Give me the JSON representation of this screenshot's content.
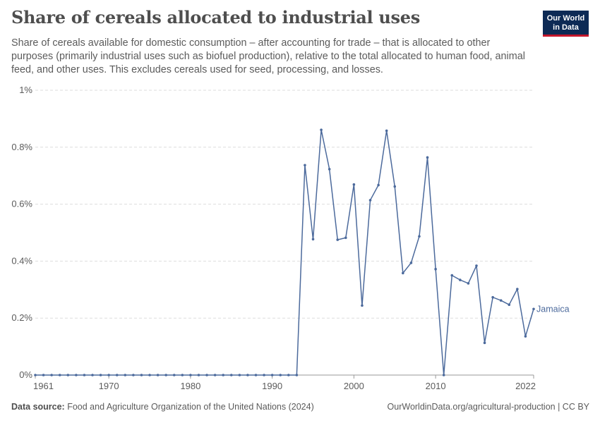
{
  "header": {
    "title": "Share of cereals allocated to industrial uses",
    "subtitle": "Share of cereals available for domestic consumption – after accounting for trade – that is allocated to other purposes (primarily industrial uses such as biofuel production), relative to the total allocated to human food, animal feed, and other uses. This excludes cereals used for seed, processing, and losses.",
    "logo_line1": "Our World",
    "logo_line2": "in Data"
  },
  "footer": {
    "source_label": "Data source:",
    "source_text": "Food and Agriculture Organization of the United Nations (2024)",
    "url": "OurWorldinData.org/agricultural-production | CC BY"
  },
  "colors": {
    "series": "#4c6a9c",
    "grid": "#dddddd",
    "axis": "#999999"
  },
  "chart_data": {
    "type": "line",
    "xlim": [
      1961,
      2022
    ],
    "ylim": [
      0,
      1
    ],
    "x_ticks": [
      1961,
      1970,
      1980,
      1990,
      2000,
      2010,
      2022
    ],
    "y_ticks": [
      {
        "value": 0,
        "label": "0%"
      },
      {
        "value": 0.2,
        "label": "0.2%"
      },
      {
        "value": 0.4,
        "label": "0.4%"
      },
      {
        "value": 0.6,
        "label": "0.6%"
      },
      {
        "value": 0.8,
        "label": "0.8%"
      },
      {
        "value": 1,
        "label": "1%"
      }
    ],
    "grid": true,
    "series": [
      {
        "name": "Jamaica",
        "x": [
          1961,
          1962,
          1963,
          1964,
          1965,
          1966,
          1967,
          1968,
          1969,
          1970,
          1971,
          1972,
          1973,
          1974,
          1975,
          1976,
          1977,
          1978,
          1979,
          1980,
          1981,
          1982,
          1983,
          1984,
          1985,
          1986,
          1987,
          1988,
          1989,
          1990,
          1991,
          1992,
          1993,
          1994,
          1995,
          1996,
          1997,
          1998,
          1999,
          2000,
          2001,
          2002,
          2003,
          2004,
          2005,
          2006,
          2007,
          2008,
          2009,
          2010,
          2011,
          2012,
          2013,
          2014,
          2015,
          2016,
          2017,
          2018,
          2019,
          2020,
          2021,
          2022
        ],
        "values": [
          0,
          0,
          0,
          0,
          0,
          0,
          0,
          0,
          0,
          0,
          0,
          0,
          0,
          0,
          0,
          0,
          0,
          0,
          0,
          0,
          0,
          0,
          0,
          0,
          0,
          0,
          0,
          0,
          0,
          0,
          0,
          0,
          0,
          0.737,
          0.477,
          0.861,
          0.723,
          0.475,
          0.482,
          0.669,
          0.244,
          0.614,
          0.667,
          0.858,
          0.662,
          0.358,
          0.394,
          0.487,
          0.764,
          0.372,
          0,
          0.35,
          0.334,
          0.322,
          0.384,
          0.113,
          0.273,
          0.262,
          0.247,
          0.302,
          0.136,
          0.232
        ]
      }
    ]
  }
}
